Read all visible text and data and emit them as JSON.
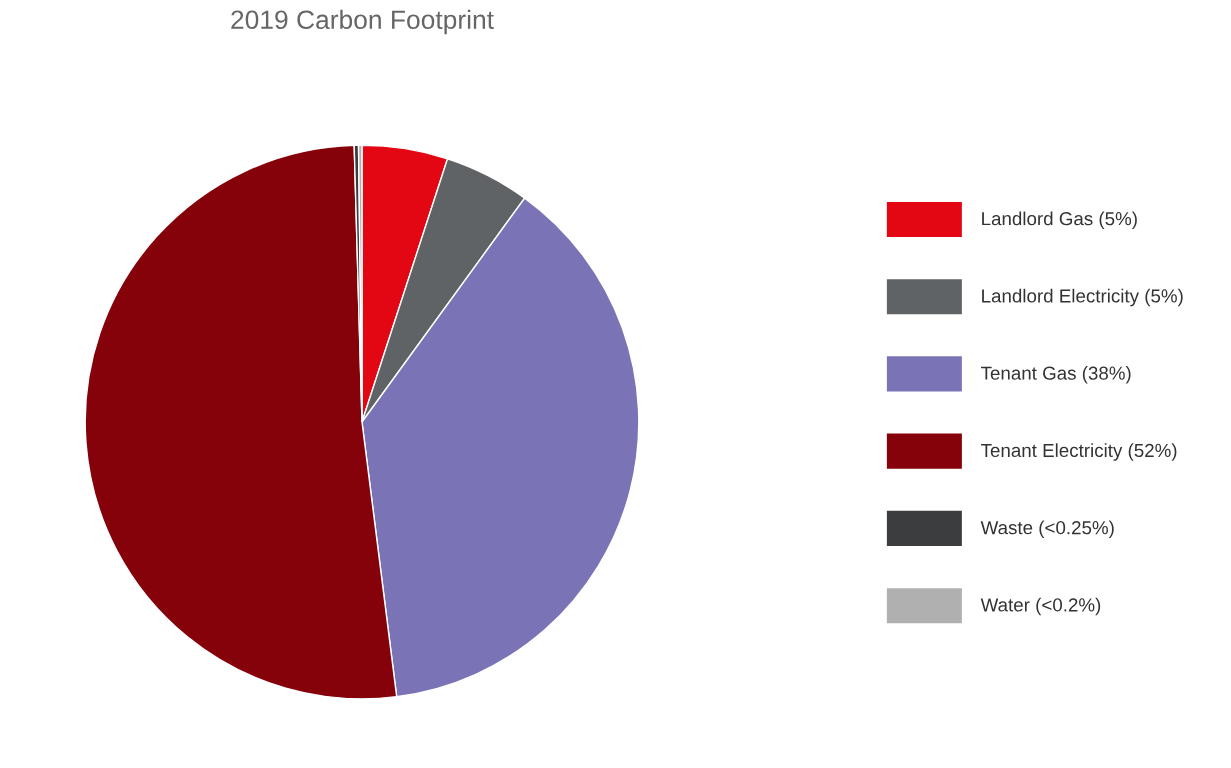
{
  "chart_data": {
    "type": "pie",
    "title": "2019 Carbon Footprint",
    "categories": [
      "Landlord Gas (5%)",
      "Landlord Electricity (5%)",
      "Tenant Gas (38%)",
      "Tenant Electricity (52%)",
      "Waste (<0.25%)",
      "Water (<0.2%)"
    ],
    "values": [
      5,
      5,
      38,
      51.55,
      0.25,
      0.2
    ],
    "colors": [
      "#e30613",
      "#606366",
      "#7a74b6",
      "#86020a",
      "#3c3d3f",
      "#b0b0b0"
    ],
    "legend": "right"
  }
}
